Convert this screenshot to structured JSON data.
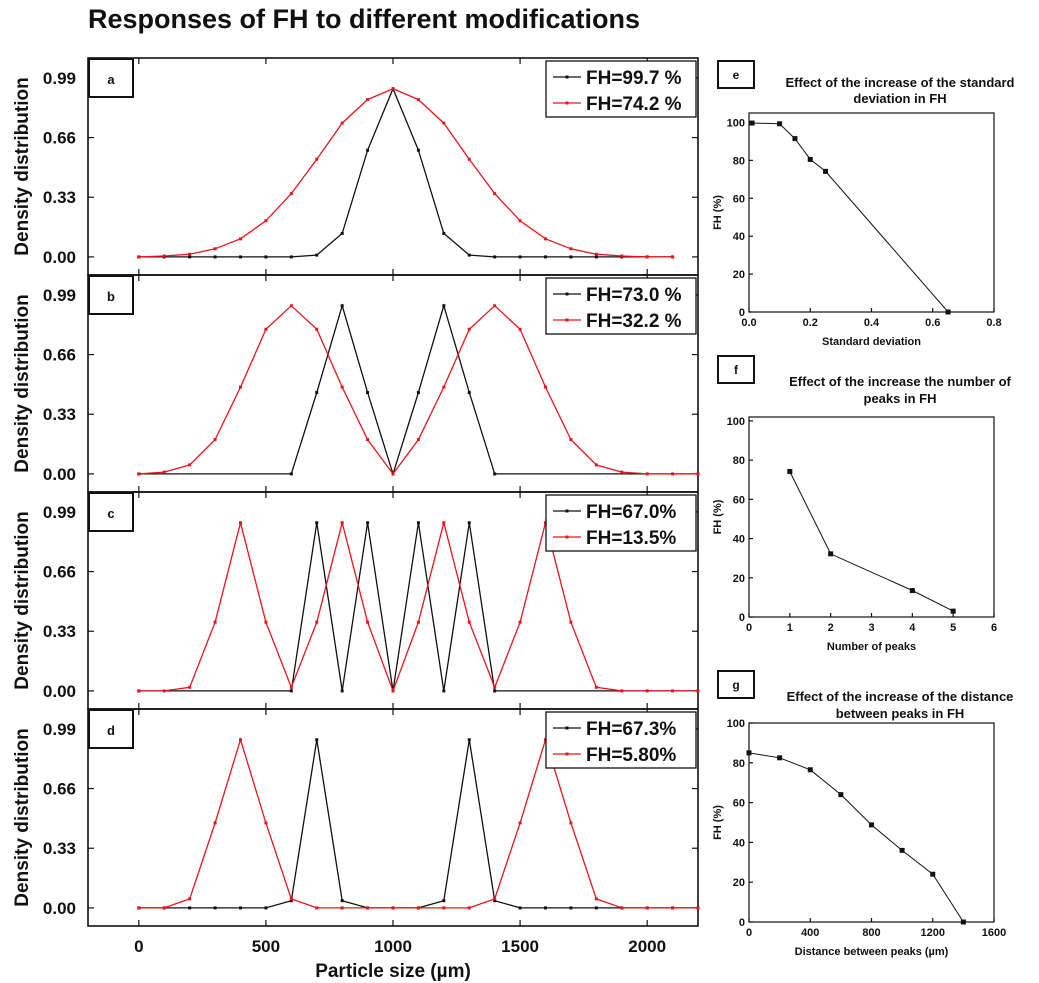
{
  "title": "Responses of FH to different modifications",
  "colors": {
    "black_series": "#111111",
    "red_series": "#e8141b"
  },
  "chart_data": [
    {
      "id": "a",
      "panel_label": "a",
      "type": "line",
      "xlim": [
        -200,
        2200
      ],
      "ylim": [
        -0.1,
        1.1
      ],
      "xticks": [
        0,
        500,
        1000,
        1500,
        2000
      ],
      "yticks": [
        0.0,
        0.33,
        0.66,
        0.99
      ],
      "ytick_labels": [
        "0.00",
        "0.33",
        "0.66",
        "0.99"
      ],
      "ylabel": "Density distribution",
      "xlabel": "",
      "legend_position": "top-right",
      "series": [
        {
          "name": "FH=99.7 %",
          "color": "#111111",
          "x": [
            0,
            100,
            200,
            300,
            400,
            500,
            600,
            700,
            800,
            900,
            1000,
            1100,
            1200,
            1300,
            1400,
            1500,
            1600,
            1700,
            1800,
            1900,
            2000,
            2100
          ],
          "y": [
            0,
            0,
            0,
            0,
            0,
            0,
            0,
            0.01,
            0.13,
            0.59,
            0.93,
            0.59,
            0.13,
            0.01,
            0,
            0,
            0,
            0,
            0,
            0,
            0,
            0
          ]
        },
        {
          "name": "FH=74.2 %",
          "color": "#e8141b",
          "x": [
            0,
            100,
            200,
            300,
            400,
            500,
            600,
            700,
            800,
            900,
            1000,
            1100,
            1200,
            1300,
            1400,
            1500,
            1600,
            1700,
            1800,
            1900,
            2000,
            2100
          ],
          "y": [
            0,
            0.005,
            0.015,
            0.045,
            0.1,
            0.2,
            0.35,
            0.54,
            0.74,
            0.87,
            0.93,
            0.87,
            0.74,
            0.54,
            0.35,
            0.2,
            0.1,
            0.045,
            0.015,
            0.005,
            0,
            0
          ]
        }
      ]
    },
    {
      "id": "b",
      "panel_label": "b",
      "type": "line",
      "xlim": [
        -200,
        2200
      ],
      "ylim": [
        -0.1,
        1.1
      ],
      "xticks": [
        0,
        500,
        1000,
        1500,
        2000
      ],
      "yticks": [
        0.0,
        0.33,
        0.66,
        0.99
      ],
      "ytick_labels": [
        "0.00",
        "0.33",
        "0.66",
        "0.99"
      ],
      "ylabel": "Density distribution",
      "xlabel": "",
      "legend_position": "top-right",
      "series": [
        {
          "name": "FH=73.0 %",
          "color": "#111111",
          "x": [
            0,
            600,
            700,
            800,
            900,
            1000,
            1100,
            1200,
            1300,
            1400,
            2200
          ],
          "y": [
            0,
            0,
            0.45,
            0.93,
            0.45,
            0,
            0.45,
            0.93,
            0.45,
            0,
            0
          ]
        },
        {
          "name": "FH=32.2 %",
          "color": "#e8141b",
          "x": [
            0,
            100,
            200,
            300,
            400,
            500,
            600,
            700,
            800,
            900,
            1000,
            1100,
            1200,
            1300,
            1400,
            1500,
            1600,
            1700,
            1800,
            1900,
            2000,
            2100,
            2200
          ],
          "y": [
            0,
            0.01,
            0.05,
            0.19,
            0.48,
            0.8,
            0.93,
            0.8,
            0.48,
            0.19,
            0,
            0.19,
            0.48,
            0.8,
            0.93,
            0.8,
            0.48,
            0.19,
            0.05,
            0.01,
            0,
            0,
            0
          ]
        }
      ]
    },
    {
      "id": "c",
      "panel_label": "c",
      "type": "line",
      "xlim": [
        -200,
        2200
      ],
      "ylim": [
        -0.1,
        1.1
      ],
      "xticks": [
        0,
        500,
        1000,
        1500,
        2000
      ],
      "yticks": [
        0.0,
        0.33,
        0.66,
        0.99
      ],
      "ytick_labels": [
        "0.00",
        "0.33",
        "0.66",
        "0.99"
      ],
      "ylabel": "Density distribution",
      "xlabel": "",
      "legend_position": "top-right",
      "series": [
        {
          "name": "FH=67.0%",
          "color": "#111111",
          "x": [
            0,
            600,
            700,
            800,
            900,
            1000,
            1100,
            1200,
            1300,
            1400,
            2200
          ],
          "y": [
            0,
            0,
            0.93,
            0,
            0.93,
            0,
            0.93,
            0,
            0.93,
            0,
            0
          ]
        },
        {
          "name": "FH=13.5%",
          "color": "#e8141b",
          "x": [
            0,
            100,
            200,
            300,
            400,
            500,
            600,
            700,
            800,
            900,
            1000,
            1100,
            1200,
            1300,
            1400,
            1500,
            1600,
            1700,
            1800,
            1900,
            2000,
            2100,
            2200
          ],
          "y": [
            0,
            0,
            0.02,
            0.38,
            0.93,
            0.38,
            0.02,
            0.38,
            0.93,
            0.38,
            0,
            0.38,
            0.93,
            0.38,
            0.02,
            0.38,
            0.93,
            0.38,
            0.02,
            0,
            0,
            0,
            0
          ]
        }
      ]
    },
    {
      "id": "d",
      "panel_label": "d",
      "type": "line",
      "xlim": [
        -200,
        2200
      ],
      "ylim": [
        -0.1,
        1.1
      ],
      "xticks": [
        0,
        500,
        1000,
        1500,
        2000
      ],
      "yticks": [
        0.0,
        0.33,
        0.66,
        0.99
      ],
      "ytick_labels": [
        "0.00",
        "0.33",
        "0.66",
        "0.99"
      ],
      "ylabel": "Density distribution",
      "xlabel": "Particle size (µm)",
      "legend_position": "top-right",
      "series": [
        {
          "name": "FH=67.3%",
          "color": "#111111",
          "x": [
            0,
            100,
            200,
            300,
            400,
            500,
            600,
            700,
            800,
            900,
            1000,
            1100,
            1200,
            1300,
            1400,
            1500,
            1600,
            1700,
            1800,
            1900,
            2000,
            2100,
            2200
          ],
          "y": [
            0,
            0,
            0,
            0,
            0,
            0,
            0.04,
            0.93,
            0.04,
            0,
            0,
            0,
            0.04,
            0.93,
            0.04,
            0,
            0,
            0,
            0,
            0,
            0,
            0,
            0
          ]
        },
        {
          "name": "FH=5.80%",
          "color": "#e8141b",
          "x": [
            0,
            100,
            200,
            300,
            400,
            500,
            600,
            700,
            800,
            900,
            1000,
            1100,
            1200,
            1300,
            1400,
            1500,
            1600,
            1700,
            1800,
            1900,
            2000,
            2100,
            2200
          ],
          "y": [
            0,
            0,
            0.05,
            0.47,
            0.93,
            0.47,
            0.05,
            0,
            0,
            0,
            0,
            0,
            0,
            0,
            0.05,
            0.47,
            0.93,
            0.47,
            0.05,
            0,
            0,
            0,
            0
          ]
        }
      ]
    },
    {
      "id": "e",
      "panel_label": "e",
      "type": "line",
      "title": "Effect of the increase of the standard\ndeviation in FH",
      "xlim": [
        0,
        0.8
      ],
      "ylim": [
        0,
        105
      ],
      "xticks": [
        0.0,
        0.2,
        0.4,
        0.6,
        0.8
      ],
      "xtick_labels": [
        "0.0",
        "0.2",
        "0.4",
        "0.6",
        "0.8"
      ],
      "yticks": [
        0,
        20,
        40,
        60,
        80,
        100
      ],
      "xlabel": "Standard deviation",
      "ylabel": "FH (%)",
      "series": [
        {
          "name": "",
          "color": "#111111",
          "x": [
            0.01,
            0.1,
            0.15,
            0.2,
            0.25,
            0.65
          ],
          "y": [
            99.7,
            99.3,
            91.5,
            80.5,
            74.2,
            0
          ]
        }
      ]
    },
    {
      "id": "f",
      "panel_label": "f",
      "type": "line",
      "title": "Effect of the increase the number of\npeaks in FH",
      "xlim": [
        0,
        6
      ],
      "ylim": [
        0,
        102
      ],
      "xticks": [
        0,
        1,
        2,
        3,
        4,
        5,
        6
      ],
      "yticks": [
        0,
        20,
        40,
        60,
        80,
        100
      ],
      "xlabel": "Number of peaks",
      "ylabel": "FH (%)",
      "series": [
        {
          "name": "",
          "color": "#111111",
          "x": [
            1,
            2,
            4,
            5
          ],
          "y": [
            74.2,
            32.2,
            13.5,
            3
          ]
        }
      ]
    },
    {
      "id": "g",
      "panel_label": "g",
      "type": "line",
      "title": "Effect of the increase of the distance\nbetween peaks in FH",
      "xlim": [
        0,
        1600
      ],
      "ylim": [
        0,
        100
      ],
      "xticks": [
        0,
        400,
        800,
        1200,
        1600
      ],
      "yticks": [
        0,
        20,
        40,
        60,
        80,
        100
      ],
      "xlabel": "Distance between peaks (µm)",
      "ylabel": "FH (%)",
      "series": [
        {
          "name": "",
          "color": "#111111",
          "x": [
            0,
            200,
            400,
            600,
            800,
            1000,
            1200,
            1400
          ],
          "y": [
            85,
            82.5,
            76.5,
            64,
            48.8,
            36,
            24,
            0
          ]
        }
      ]
    }
  ]
}
